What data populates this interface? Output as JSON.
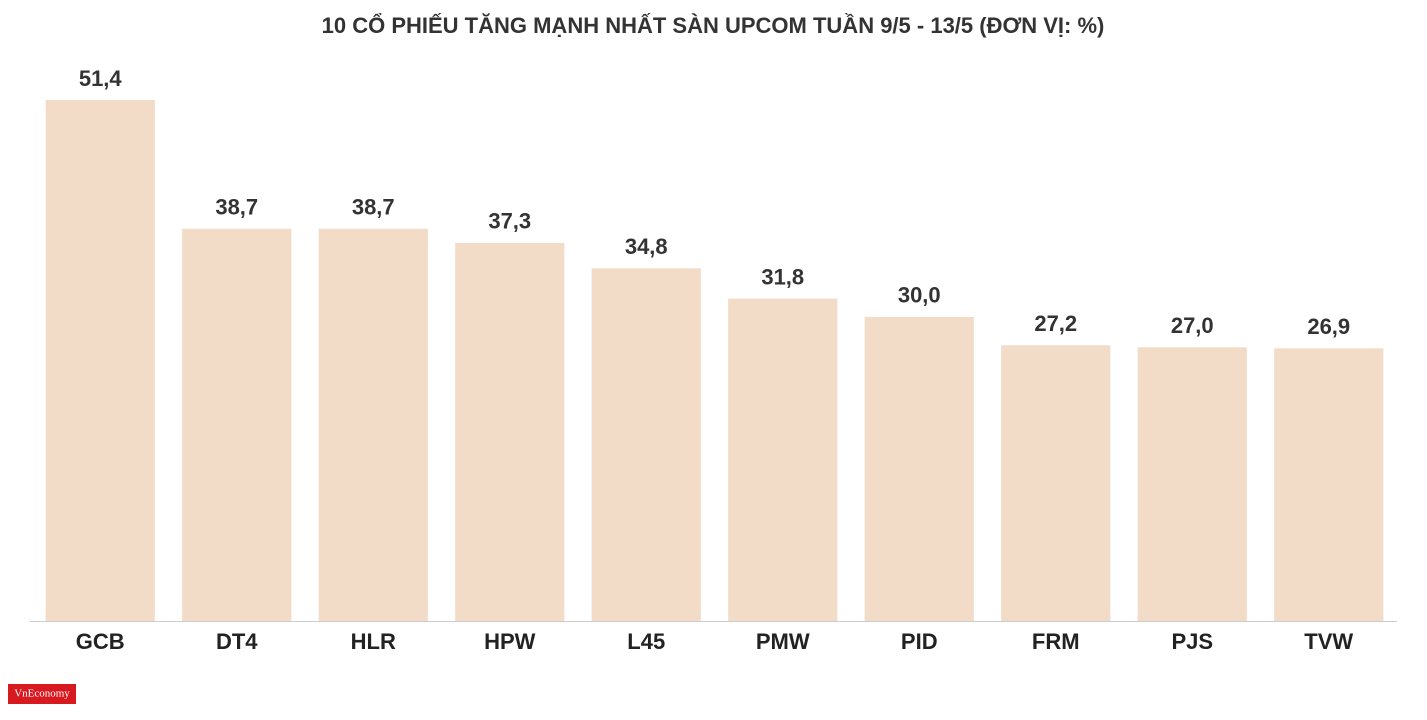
{
  "chart_data": {
    "type": "bar",
    "title": "10 CỔ PHIẾU TĂNG MẠNH NHẤT SÀN UPCOM TUẦN 9/5 - 13/5 (ĐƠN VỊ: %)",
    "categories": [
      "GCB",
      "DT4",
      "HLR",
      "HPW",
      "L45",
      "PMW",
      "PID",
      "FRM",
      "PJS",
      "TVW"
    ],
    "values": [
      51.4,
      38.7,
      38.7,
      37.3,
      34.8,
      31.8,
      30.0,
      27.2,
      27.0,
      26.9
    ],
    "value_labels": [
      "51,4",
      "38,7",
      "38,7",
      "37,3",
      "34,8",
      "31,8",
      "30,0",
      "27,2",
      "27,0",
      "26,9"
    ],
    "color": "#f2dcc8",
    "ylim": [
      0,
      55
    ],
    "grid": false,
    "logo": "VnEconomy"
  }
}
